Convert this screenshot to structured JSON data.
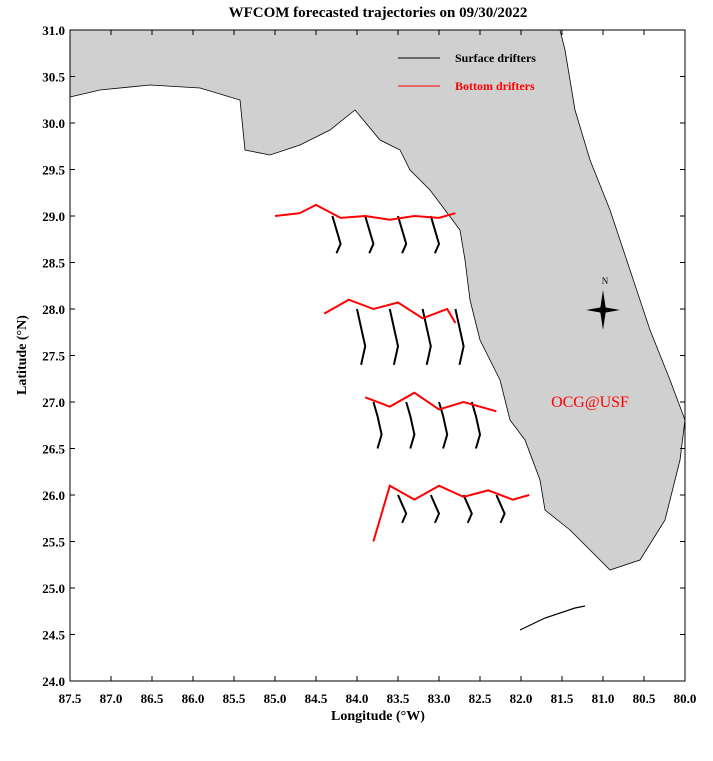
{
  "chart_data": {
    "type": "trajectory",
    "title": "WFCOM forecasted trajectories on 09/30/2022",
    "x_label": "Longitude (°W)",
    "y_label": "Latitude (°N)",
    "annotation": "OCG@USF",
    "compass_label": "N",
    "xlim": [
      87.5,
      80.0
    ],
    "ylim": [
      24.0,
      31.0
    ],
    "xticks": [
      87.5,
      {
        "value": 87,
        "label": "87.0"
      },
      86.5,
      {
        "value": 86,
        "label": "86.0"
      },
      85.5,
      {
        "value": 85,
        "label": "85.0"
      },
      84.5,
      {
        "value": 84,
        "label": "84.0"
      },
      83.5,
      {
        "value": 83,
        "label": "83.0"
      },
      82.5,
      {
        "value": 82,
        "label": "82.0"
      },
      81.5,
      {
        "value": 81,
        "label": "81.0"
      },
      80.5,
      {
        "value": 80,
        "label": "80.0"
      }
    ],
    "yticks": [
      {
        "value": 24,
        "label": "24.0"
      },
      24.5,
      {
        "value": 25,
        "label": "25.0"
      },
      25.5,
      {
        "value": 26,
        "label": "26.0"
      },
      26.5,
      {
        "value": 27,
        "label": "27.0"
      },
      27.5,
      {
        "value": 28,
        "label": "28.0"
      },
      28.5,
      {
        "value": 29,
        "label": "29.0"
      },
      29.5,
      {
        "value": 30,
        "label": "30.0"
      },
      30.5,
      {
        "value": 31,
        "label": "31.0"
      }
    ],
    "series": [
      {
        "name": "Surface drifters",
        "color": "#000000",
        "tracks": [
          {
            "x": [
              84.3,
              84.25,
              84.2,
              84.25
            ],
            "y": [
              29.0,
              28.85,
              28.7,
              28.6
            ]
          },
          {
            "x": [
              83.9,
              83.85,
              83.8,
              83.85
            ],
            "y": [
              29.0,
              28.85,
              28.7,
              28.6
            ]
          },
          {
            "x": [
              83.5,
              83.45,
              83.4,
              83.45
            ],
            "y": [
              29.0,
              28.85,
              28.7,
              28.6
            ]
          },
          {
            "x": [
              83.1,
              83.05,
              83.0,
              83.05
            ],
            "y": [
              29.0,
              28.85,
              28.7,
              28.6
            ]
          },
          {
            "x": [
              84.0,
              83.95,
              83.9,
              83.95
            ],
            "y": [
              28.0,
              27.8,
              27.6,
              27.4
            ]
          },
          {
            "x": [
              83.6,
              83.55,
              83.5,
              83.55
            ],
            "y": [
              28.0,
              27.8,
              27.6,
              27.4
            ]
          },
          {
            "x": [
              83.2,
              83.15,
              83.1,
              83.15
            ],
            "y": [
              28.0,
              27.8,
              27.6,
              27.4
            ]
          },
          {
            "x": [
              82.8,
              82.75,
              82.7,
              82.75
            ],
            "y": [
              28.0,
              27.8,
              27.6,
              27.4
            ]
          },
          {
            "x": [
              83.8,
              83.75,
              83.7,
              83.75
            ],
            "y": [
              27.0,
              26.85,
              26.65,
              26.5
            ]
          },
          {
            "x": [
              83.4,
              83.35,
              83.3,
              83.35
            ],
            "y": [
              27.0,
              26.85,
              26.65,
              26.5
            ]
          },
          {
            "x": [
              83.0,
              82.95,
              82.9,
              82.95
            ],
            "y": [
              27.0,
              26.85,
              26.65,
              26.5
            ]
          },
          {
            "x": [
              82.6,
              82.55,
              82.5,
              82.55
            ],
            "y": [
              27.0,
              26.85,
              26.65,
              26.5
            ]
          },
          {
            "x": [
              83.5,
              83.45,
              83.4,
              83.45
            ],
            "y": [
              26.0,
              25.9,
              25.8,
              25.7
            ]
          },
          {
            "x": [
              83.1,
              83.05,
              83.0,
              83.05
            ],
            "y": [
              26.0,
              25.9,
              25.8,
              25.7
            ]
          },
          {
            "x": [
              82.7,
              82.65,
              82.6,
              82.65
            ],
            "y": [
              26.0,
              25.9,
              25.8,
              25.7
            ]
          },
          {
            "x": [
              82.3,
              82.25,
              82.2,
              82.25
            ],
            "y": [
              26.0,
              25.9,
              25.8,
              25.7
            ]
          }
        ]
      },
      {
        "name": "Bottom drifters",
        "color": "#ff0000",
        "tracks": [
          {
            "x": [
              85.0,
              84.7,
              84.5,
              84.2,
              83.9,
              83.6,
              83.3,
              83.0,
              82.8
            ],
            "y": [
              29.0,
              29.03,
              29.12,
              28.98,
              29.0,
              28.96,
              29.0,
              28.98,
              29.03
            ]
          },
          {
            "x": [
              84.4,
              84.1,
              83.8,
              83.5,
              83.2,
              82.9,
              82.8
            ],
            "y": [
              27.95,
              28.1,
              28.0,
              28.07,
              27.9,
              28.0,
              27.85
            ]
          },
          {
            "x": [
              83.9,
              83.6,
              83.3,
              83.0,
              82.7,
              82.5,
              82.3
            ],
            "y": [
              27.05,
              26.95,
              27.1,
              26.92,
              27.0,
              26.95,
              26.9
            ]
          },
          {
            "x": [
              83.8,
              83.6,
              83.3,
              83.0,
              82.7,
              82.4,
              82.1,
              81.9
            ],
            "y": [
              25.5,
              26.1,
              25.95,
              26.1,
              25.98,
              26.05,
              25.95,
              26.0
            ]
          }
        ]
      }
    ]
  }
}
